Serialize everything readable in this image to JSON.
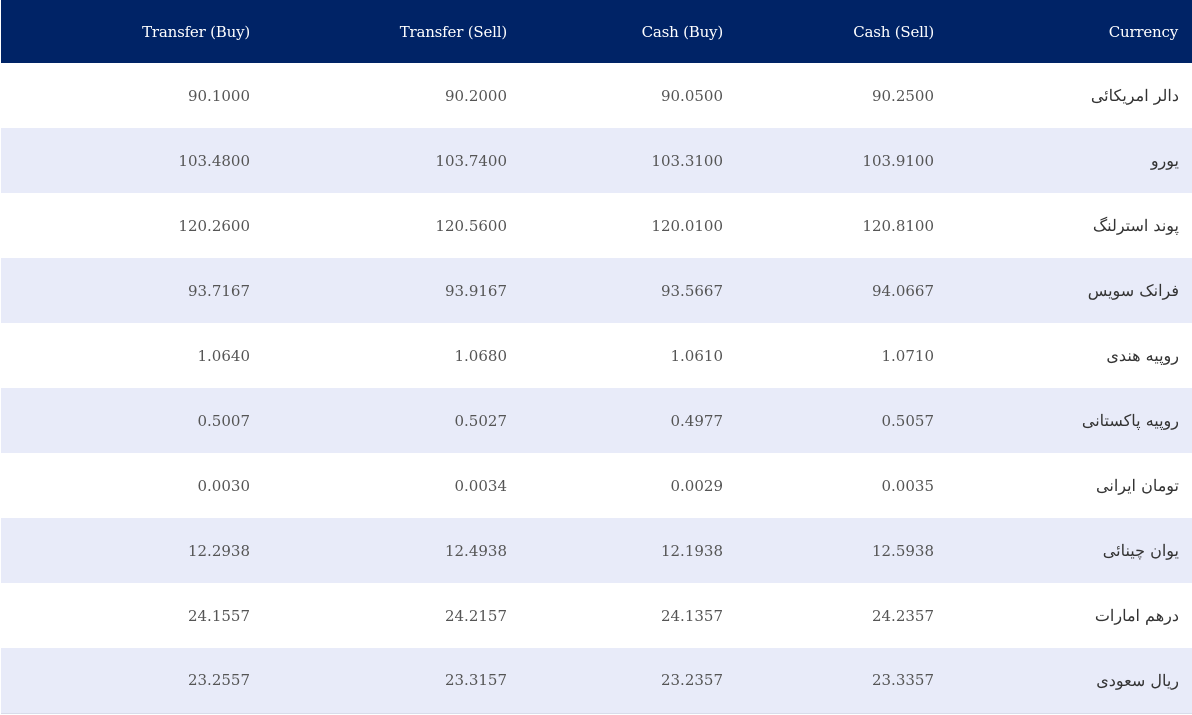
{
  "table": {
    "headers": {
      "transfer_buy": "Transfer (Buy)",
      "transfer_sell": "Transfer (Sell)",
      "cash_buy": "Cash (Buy)",
      "cash_sell": "Cash (Sell)",
      "currency": "Currency"
    },
    "rows": [
      {
        "currency": "دالر امریکائی",
        "transfer_buy": "90.1000",
        "transfer_sell": "90.2000",
        "cash_buy": "90.0500",
        "cash_sell": "90.2500"
      },
      {
        "currency": "یورو",
        "transfer_buy": "103.4800",
        "transfer_sell": "103.7400",
        "cash_buy": "103.3100",
        "cash_sell": "103.9100"
      },
      {
        "currency": "پوند استرلنگ",
        "transfer_buy": "120.2600",
        "transfer_sell": "120.5600",
        "cash_buy": "120.0100",
        "cash_sell": "120.8100"
      },
      {
        "currency": "فرانک سویس",
        "transfer_buy": "93.7167",
        "transfer_sell": "93.9167",
        "cash_buy": "93.5667",
        "cash_sell": "94.0667"
      },
      {
        "currency": "روپیه هندی",
        "transfer_buy": "1.0640",
        "transfer_sell": "1.0680",
        "cash_buy": "1.0610",
        "cash_sell": "1.0710"
      },
      {
        "currency": "روپیه پاکستانی",
        "transfer_buy": "0.5007",
        "transfer_sell": "0.5027",
        "cash_buy": "0.4977",
        "cash_sell": "0.5057"
      },
      {
        "currency": "تومان ایرانی",
        "transfer_buy": "0.0030",
        "transfer_sell": "0.0034",
        "cash_buy": "0.0029",
        "cash_sell": "0.0035"
      },
      {
        "currency": "یوان چینائی",
        "transfer_buy": "12.2938",
        "transfer_sell": "12.4938",
        "cash_buy": "12.1938",
        "cash_sell": "12.5938"
      },
      {
        "currency": "درهم امارات",
        "transfer_buy": "24.1557",
        "transfer_sell": "24.2157",
        "cash_buy": "24.1357",
        "cash_sell": "24.2357"
      },
      {
        "currency": "ریال سعودی",
        "transfer_buy": "23.2557",
        "transfer_sell": "23.3157",
        "cash_buy": "23.2357",
        "cash_sell": "23.3357"
      }
    ]
  },
  "colors": {
    "header_bg": "#002366",
    "header_text": "#ffffff",
    "row_alt_bg": "#e8ebf9",
    "row_bg": "#ffffff",
    "cell_text": "#555555"
  }
}
